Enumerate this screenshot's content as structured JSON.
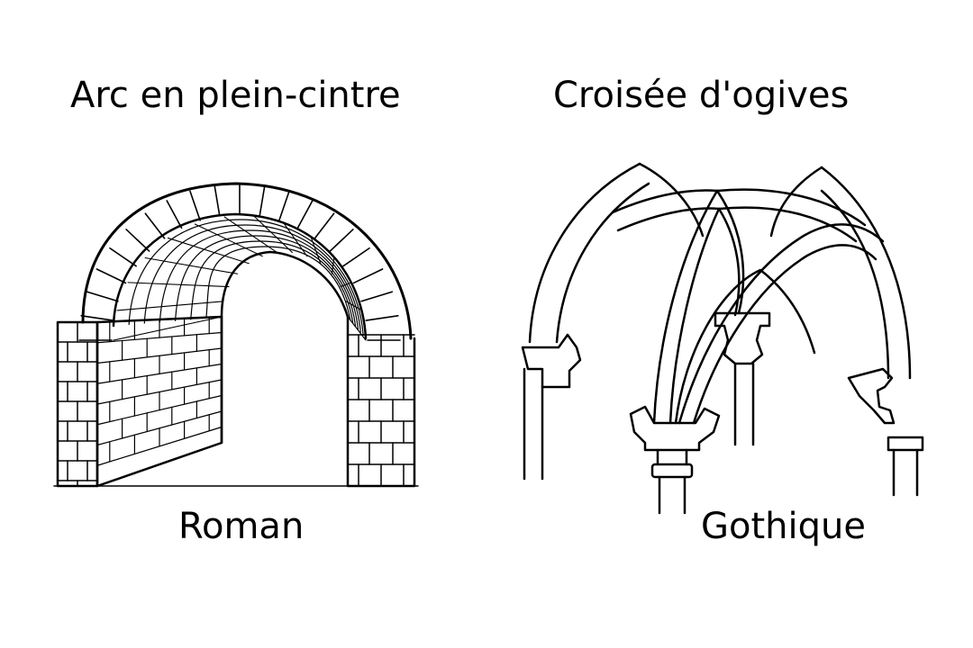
{
  "roman": {
    "title": "Arc en plein-cintre",
    "label": "Roman"
  },
  "gothic": {
    "title": "Croisée d'ogives",
    "label": "Gothique"
  },
  "colors": {
    "ink": "#000000",
    "background": "#ffffff"
  }
}
